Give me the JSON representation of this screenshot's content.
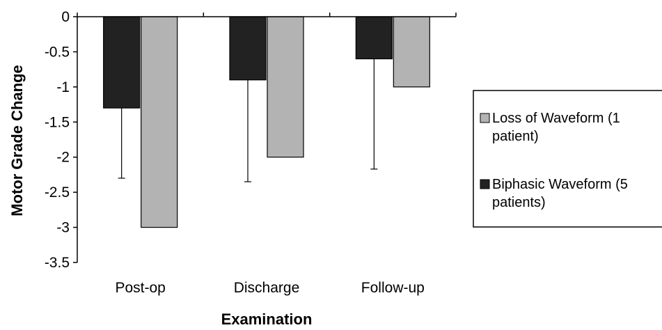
{
  "chart_data": {
    "type": "bar",
    "title": "",
    "xlabel": "Examination",
    "ylabel": "Motor Grade Change",
    "categories": [
      "Post-op",
      "Discharge",
      "Follow-up"
    ],
    "ylim": [
      -3.5,
      0
    ],
    "yticks": [
      0,
      -0.5,
      -1,
      -1.5,
      -2,
      -2.5,
      -3,
      -3.5
    ],
    "ytick_labels": [
      "0",
      "-0.5",
      "-1",
      "-1.5",
      "-2",
      "-2.5",
      "-3",
      "-3.5"
    ],
    "grid": false,
    "legend_position": "right",
    "series": [
      {
        "name_lines": [
          "Biphasic Waveform (5",
          "patients)"
        ],
        "values": [
          -1.3,
          -0.9,
          -0.6
        ],
        "error_lower": [
          -2.3,
          -2.35,
          -2.17
        ],
        "color": "#222222"
      },
      {
        "name_lines": [
          "Loss of Waveform (1",
          "patient)"
        ],
        "values": [
          -3.0,
          -2.0,
          -1.0
        ],
        "color": "#b3b3b3"
      }
    ]
  }
}
